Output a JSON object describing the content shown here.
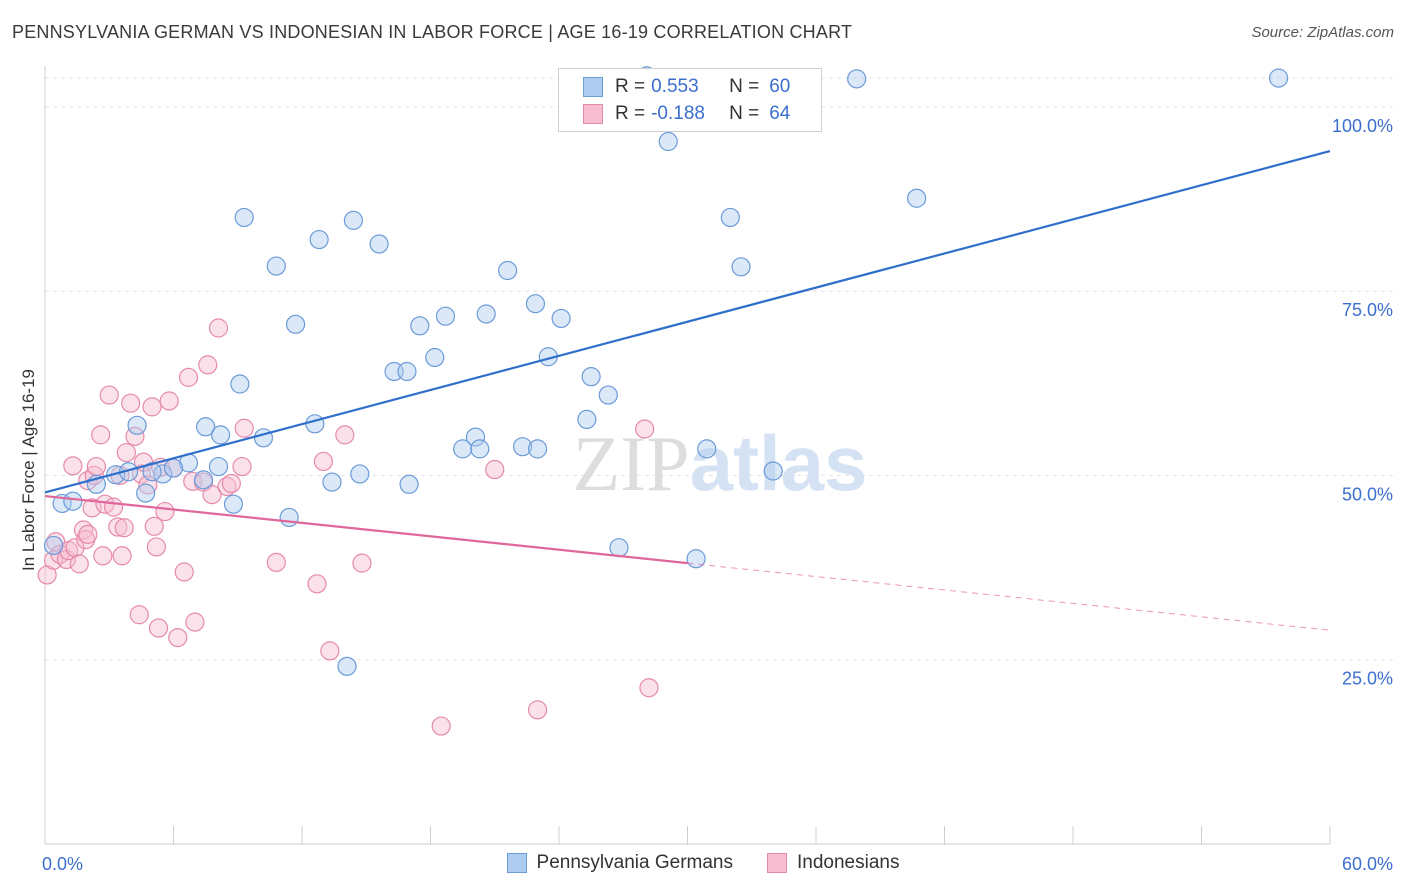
{
  "header": {
    "title": "PENNSYLVANIA GERMAN VS INDONESIAN IN LABOR FORCE | AGE 16-19 CORRELATION CHART",
    "source": "Source: ZipAtlas.com"
  },
  "legend": {
    "rows": [
      {
        "r_label": "R =",
        "r_value": "0.553",
        "n_label": "N =",
        "n_value": "60"
      },
      {
        "r_label": "R =",
        "r_value": "-0.188",
        "n_label": "N =",
        "n_value": "64"
      }
    ]
  },
  "bottom_legend": {
    "series1": "Pennsylvania Germans",
    "series2": "Indonesians"
  },
  "watermark": "ZIPatlas",
  "colors": {
    "blue_fill": "#aecbf0",
    "blue_stroke": "#6b9bd8",
    "blue_line": "#2f6fcc",
    "pink_fill": "#f7bcd0",
    "pink_stroke": "#e68aab",
    "pink_line": "#e0679a",
    "tick_text": "#3b6fcf",
    "grid": "#e3e3e3"
  },
  "chart_data": {
    "type": "scatter",
    "title": "PENNSYLVANIA GERMAN VS INDONESIAN IN LABOR FORCE | AGE 16-19 CORRELATION CHART",
    "xlabel": "",
    "ylabel": "In Labor Force | Age 16-19",
    "xlim": [
      0,
      60
    ],
    "ylim": [
      0,
      105
    ],
    "x_tick_labels": [
      "0.0%",
      "60.0%"
    ],
    "y_ticks": [
      25,
      50,
      75,
      100
    ],
    "y_tick_labels": [
      "25.0%",
      "50.0%",
      "75.0%",
      "100.0%"
    ],
    "grid": true,
    "legend_placement": "top-center",
    "series": [
      {
        "name": "Pennsylvania Germans",
        "r": 0.553,
        "n": 60,
        "trend": {
          "x": [
            0,
            60
          ],
          "y": [
            47.7,
            94.0
          ],
          "dashed_after": null
        },
        "points": [
          [
            0.4,
            40.5
          ],
          [
            0.8,
            46.2
          ],
          [
            1.3,
            46.5
          ],
          [
            2.4,
            48.8
          ],
          [
            3.3,
            50.1
          ],
          [
            3.9,
            50.5
          ],
          [
            4.3,
            56.8
          ],
          [
            5.5,
            50.2
          ],
          [
            5.0,
            50.5
          ],
          [
            4.7,
            47.6
          ],
          [
            6.7,
            51.7
          ],
          [
            7.4,
            49.4
          ],
          [
            6.0,
            51.0
          ],
          [
            8.1,
            51.2
          ],
          [
            7.5,
            56.6
          ],
          [
            8.2,
            55.5
          ],
          [
            8.8,
            46.1
          ],
          [
            9.1,
            62.4
          ],
          [
            9.3,
            85.0
          ],
          [
            10.2,
            55.1
          ],
          [
            10.8,
            78.4
          ],
          [
            11.4,
            44.3
          ],
          [
            11.7,
            70.5
          ],
          [
            12.6,
            57.0
          ],
          [
            12.8,
            82.0
          ],
          [
            13.4,
            49.1
          ],
          [
            14.1,
            24.1
          ],
          [
            14.4,
            84.6
          ],
          [
            14.7,
            50.2
          ],
          [
            15.6,
            81.4
          ],
          [
            16.3,
            64.1
          ],
          [
            16.9,
            64.1
          ],
          [
            17.0,
            48.8
          ],
          [
            17.5,
            70.3
          ],
          [
            18.2,
            66.0
          ],
          [
            18.7,
            71.6
          ],
          [
            19.5,
            53.6
          ],
          [
            20.1,
            55.2
          ],
          [
            20.3,
            53.6
          ],
          [
            20.6,
            71.9
          ],
          [
            21.6,
            77.8
          ],
          [
            22.3,
            53.9
          ],
          [
            23.0,
            53.6
          ],
          [
            22.9,
            73.3
          ],
          [
            23.5,
            66.1
          ],
          [
            24.1,
            71.3
          ],
          [
            25.3,
            57.6
          ],
          [
            25.5,
            63.4
          ],
          [
            26.3,
            60.9
          ],
          [
            26.8,
            40.2
          ],
          [
            28.1,
            104.2
          ],
          [
            29.1,
            95.3
          ],
          [
            30.4,
            38.7
          ],
          [
            30.9,
            53.6
          ],
          [
            32.0,
            85.0
          ],
          [
            32.5,
            78.3
          ],
          [
            34.0,
            50.6
          ],
          [
            37.9,
            103.8
          ],
          [
            40.7,
            87.6
          ],
          [
            57.6,
            103.9
          ]
        ]
      },
      {
        "name": "Indonesians",
        "r": -0.188,
        "n": 64,
        "trend": {
          "x": [
            0,
            30
          ],
          "y": [
            47.2,
            38.1
          ],
          "dashed_after": 30,
          "dashed_to": [
            60,
            29.0
          ]
        },
        "points": [
          [
            0.1,
            36.5
          ],
          [
            0.4,
            38.5
          ],
          [
            0.5,
            41.0
          ],
          [
            0.7,
            39.3
          ],
          [
            1.0,
            38.6
          ],
          [
            1.1,
            39.8
          ],
          [
            1.3,
            51.3
          ],
          [
            1.4,
            40.2
          ],
          [
            1.6,
            38.0
          ],
          [
            1.8,
            42.6
          ],
          [
            1.9,
            41.3
          ],
          [
            2.0,
            42.0
          ],
          [
            2.0,
            49.3
          ],
          [
            2.2,
            45.6
          ],
          [
            2.3,
            50.0
          ],
          [
            2.4,
            51.2
          ],
          [
            2.6,
            55.5
          ],
          [
            2.7,
            39.1
          ],
          [
            2.8,
            46.1
          ],
          [
            3.0,
            60.9
          ],
          [
            3.2,
            45.7
          ],
          [
            3.4,
            43.0
          ],
          [
            3.5,
            50.0
          ],
          [
            3.6,
            39.1
          ],
          [
            3.7,
            42.9
          ],
          [
            3.8,
            53.1
          ],
          [
            4.0,
            59.8
          ],
          [
            4.2,
            55.3
          ],
          [
            4.4,
            31.1
          ],
          [
            4.5,
            50.2
          ],
          [
            4.6,
            51.8
          ],
          [
            4.8,
            48.7
          ],
          [
            5.0,
            59.3
          ],
          [
            5.1,
            43.1
          ],
          [
            5.2,
            40.3
          ],
          [
            5.4,
            51.1
          ],
          [
            5.6,
            45.1
          ],
          [
            5.8,
            60.1
          ],
          [
            6.0,
            51.0
          ],
          [
            6.2,
            28.0
          ],
          [
            6.5,
            36.9
          ],
          [
            6.7,
            63.3
          ],
          [
            6.9,
            49.2
          ],
          [
            7.0,
            30.1
          ],
          [
            7.4,
            49.1
          ],
          [
            7.6,
            65.0
          ],
          [
            7.8,
            47.4
          ],
          [
            8.1,
            70.0
          ],
          [
            8.5,
            48.5
          ],
          [
            8.7,
            48.9
          ],
          [
            9.2,
            51.2
          ],
          [
            9.3,
            56.4
          ],
          [
            10.8,
            38.2
          ],
          [
            12.7,
            35.3
          ],
          [
            13.0,
            51.9
          ],
          [
            14.0,
            55.5
          ],
          [
            14.8,
            38.1
          ],
          [
            18.5,
            16.0
          ],
          [
            21.0,
            50.8
          ],
          [
            23.0,
            18.2
          ],
          [
            28.0,
            56.3
          ],
          [
            28.2,
            21.2
          ],
          [
            13.3,
            26.2
          ],
          [
            5.3,
            29.3
          ]
        ]
      }
    ]
  }
}
